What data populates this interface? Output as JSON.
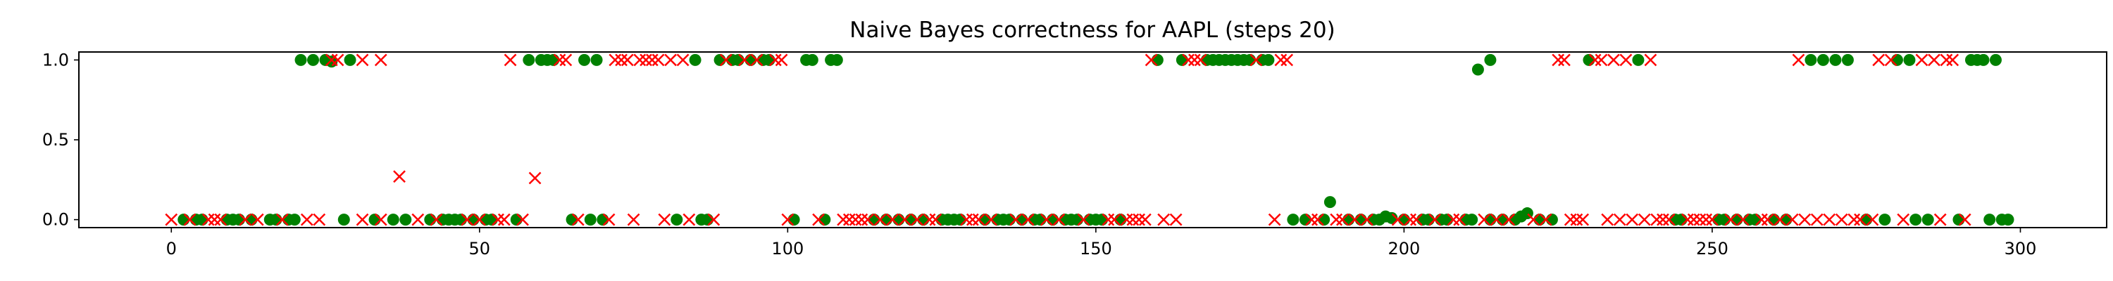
{
  "chart_data": {
    "type": "scatter",
    "title": "Naive Bayes correctness for AAPL (steps 20)",
    "xlabel": "",
    "ylabel": "",
    "xlim": [
      -15,
      314
    ],
    "ylim": [
      -0.05,
      1.05
    ],
    "xticks": [
      0,
      50,
      100,
      150,
      200,
      250,
      300
    ],
    "yticks": [
      0.0,
      0.5,
      1.0
    ],
    "grid": false,
    "colors": {
      "correct": "#008000",
      "incorrect": "#ff0000"
    },
    "series": [
      {
        "marker": "circle",
        "color": "#008000",
        "points": [
          [
            2,
            0
          ],
          [
            4,
            0
          ],
          [
            5,
            0
          ],
          [
            9,
            0
          ],
          [
            10,
            0
          ],
          [
            11,
            0
          ],
          [
            13,
            0
          ],
          [
            16,
            0
          ],
          [
            17,
            0
          ],
          [
            19,
            0
          ],
          [
            20,
            0
          ],
          [
            21,
            1
          ],
          [
            23,
            1
          ],
          [
            25,
            1
          ],
          [
            26,
            0.99
          ],
          [
            28,
            0
          ],
          [
            29,
            1
          ],
          [
            33,
            0
          ],
          [
            36,
            0
          ],
          [
            38,
            0
          ],
          [
            42,
            0
          ],
          [
            44,
            0
          ],
          [
            45,
            0
          ],
          [
            46,
            0
          ],
          [
            47,
            0
          ],
          [
            49,
            0
          ],
          [
            51,
            0
          ],
          [
            52,
            0
          ],
          [
            56,
            0
          ],
          [
            58,
            1
          ],
          [
            60,
            1
          ],
          [
            61,
            1
          ],
          [
            62,
            1
          ],
          [
            65,
            0
          ],
          [
            67,
            1
          ],
          [
            68,
            0
          ],
          [
            69,
            1
          ],
          [
            70,
            0
          ],
          [
            82,
            0
          ],
          [
            85,
            1
          ],
          [
            86,
            0
          ],
          [
            87,
            0
          ],
          [
            89,
            1
          ],
          [
            91,
            1
          ],
          [
            92,
            1
          ],
          [
            94,
            1
          ],
          [
            96,
            1
          ],
          [
            97,
            1
          ],
          [
            101,
            0
          ],
          [
            103,
            1
          ],
          [
            104,
            1
          ],
          [
            106,
            0
          ],
          [
            107,
            1
          ],
          [
            108,
            1
          ],
          [
            114,
            0
          ],
          [
            116,
            0
          ],
          [
            118,
            0
          ],
          [
            120,
            0
          ],
          [
            122,
            0
          ],
          [
            125,
            0
          ],
          [
            126,
            0
          ],
          [
            127,
            0
          ],
          [
            128,
            0
          ],
          [
            132,
            0
          ],
          [
            134,
            0
          ],
          [
            135,
            0
          ],
          [
            136,
            0
          ],
          [
            138,
            0
          ],
          [
            140,
            0
          ],
          [
            141,
            0
          ],
          [
            143,
            0
          ],
          [
            145,
            0
          ],
          [
            146,
            0
          ],
          [
            147,
            0
          ],
          [
            149,
            0
          ],
          [
            150,
            0
          ],
          [
            151,
            0
          ],
          [
            154,
            0
          ],
          [
            160,
            1
          ],
          [
            164,
            1
          ],
          [
            168,
            1
          ],
          [
            169,
            1
          ],
          [
            170,
            1
          ],
          [
            171,
            1
          ],
          [
            172,
            1
          ],
          [
            173,
            1
          ],
          [
            174,
            1
          ],
          [
            175,
            1
          ],
          [
            177,
            1
          ],
          [
            178,
            1
          ],
          [
            182,
            0
          ],
          [
            184,
            0
          ],
          [
            187,
            0
          ],
          [
            188,
            0.11
          ],
          [
            191,
            0
          ],
          [
            193,
            0
          ],
          [
            195,
            0
          ],
          [
            196,
            0
          ],
          [
            197,
            0.02
          ],
          [
            198,
            0.01
          ],
          [
            200,
            0
          ],
          [
            203,
            0
          ],
          [
            204,
            0
          ],
          [
            206,
            0
          ],
          [
            207,
            0
          ],
          [
            210,
            0
          ],
          [
            211,
            0
          ],
          [
            212,
            0.94
          ],
          [
            214,
            1
          ],
          [
            214,
            0
          ],
          [
            216,
            0
          ],
          [
            218,
            0
          ],
          [
            219,
            0.02
          ],
          [
            220,
            0.04
          ],
          [
            222,
            0
          ],
          [
            224,
            0
          ],
          [
            230,
            1
          ],
          [
            238,
            1
          ],
          [
            244,
            0
          ],
          [
            245,
            0
          ],
          [
            251,
            0
          ],
          [
            252,
            0
          ],
          [
            254,
            0
          ],
          [
            256,
            0
          ],
          [
            257,
            0
          ],
          [
            260,
            0
          ],
          [
            262,
            0
          ],
          [
            266,
            1
          ],
          [
            268,
            1
          ],
          [
            270,
            1
          ],
          [
            272,
            1
          ],
          [
            275,
            0
          ],
          [
            278,
            0
          ],
          [
            280,
            1
          ],
          [
            282,
            1
          ],
          [
            283,
            0
          ],
          [
            285,
            0
          ],
          [
            290,
            0
          ],
          [
            292,
            1
          ],
          [
            293,
            1
          ],
          [
            294,
            1
          ],
          [
            295,
            0
          ],
          [
            296,
            1
          ],
          [
            297,
            0
          ],
          [
            298,
            0
          ]
        ]
      },
      {
        "marker": "x",
        "color": "#ff0000",
        "points": [
          [
            0,
            0
          ],
          [
            3,
            0
          ],
          [
            6,
            0
          ],
          [
            7,
            0
          ],
          [
            8,
            0
          ],
          [
            12,
            0
          ],
          [
            14,
            0
          ],
          [
            18,
            0
          ],
          [
            22,
            0
          ],
          [
            24,
            0
          ],
          [
            26,
            1
          ],
          [
            27,
            1
          ],
          [
            31,
            0
          ],
          [
            31,
            1
          ],
          [
            34,
            0
          ],
          [
            34,
            1
          ],
          [
            37,
            0.27
          ],
          [
            40,
            0
          ],
          [
            43,
            0
          ],
          [
            48,
            0
          ],
          [
            50,
            0
          ],
          [
            53,
            0
          ],
          [
            54,
            0
          ],
          [
            55,
            1
          ],
          [
            57,
            0
          ],
          [
            59,
            0.26
          ],
          [
            63,
            1
          ],
          [
            64,
            1
          ],
          [
            66,
            0
          ],
          [
            71,
            0
          ],
          [
            72,
            1
          ],
          [
            73,
            1
          ],
          [
            74,
            1
          ],
          [
            75,
            0
          ],
          [
            76,
            1
          ],
          [
            77,
            1
          ],
          [
            78,
            1
          ],
          [
            79,
            1
          ],
          [
            80,
            0
          ],
          [
            81,
            1
          ],
          [
            83,
            1
          ],
          [
            84,
            0
          ],
          [
            88,
            0
          ],
          [
            90,
            1
          ],
          [
            93,
            1
          ],
          [
            95,
            1
          ],
          [
            98,
            1
          ],
          [
            99,
            1
          ],
          [
            100,
            0
          ],
          [
            105,
            0
          ],
          [
            109,
            0
          ],
          [
            110,
            0
          ],
          [
            111,
            0
          ],
          [
            112,
            0
          ],
          [
            113,
            0
          ],
          [
            115,
            0
          ],
          [
            117,
            0
          ],
          [
            119,
            0
          ],
          [
            121,
            0
          ],
          [
            123,
            0
          ],
          [
            124,
            0
          ],
          [
            129,
            0
          ],
          [
            130,
            0
          ],
          [
            131,
            0
          ],
          [
            133,
            0
          ],
          [
            137,
            0
          ],
          [
            139,
            0
          ],
          [
            142,
            0
          ],
          [
            144,
            0
          ],
          [
            148,
            0
          ],
          [
            152,
            0
          ],
          [
            153,
            0
          ],
          [
            155,
            0
          ],
          [
            156,
            0
          ],
          [
            157,
            0
          ],
          [
            158,
            0
          ],
          [
            159,
            1
          ],
          [
            161,
            0
          ],
          [
            163,
            0
          ],
          [
            165,
            1
          ],
          [
            166,
            1
          ],
          [
            167,
            1
          ],
          [
            176,
            1
          ],
          [
            179,
            0
          ],
          [
            180,
            1
          ],
          [
            181,
            1
          ],
          [
            185,
            0
          ],
          [
            186,
            0
          ],
          [
            189,
            0
          ],
          [
            190,
            0
          ],
          [
            192,
            0
          ],
          [
            194,
            0
          ],
          [
            199,
            0
          ],
          [
            201,
            0
          ],
          [
            202,
            0
          ],
          [
            205,
            0
          ],
          [
            208,
            0
          ],
          [
            209,
            0
          ],
          [
            213,
            0
          ],
          [
            215,
            0
          ],
          [
            217,
            0
          ],
          [
            221,
            0
          ],
          [
            223,
            0
          ],
          [
            225,
            1
          ],
          [
            226,
            1
          ],
          [
            227,
            0
          ],
          [
            228,
            0
          ],
          [
            229,
            0
          ],
          [
            231,
            1
          ],
          [
            232,
            1
          ],
          [
            233,
            0
          ],
          [
            234,
            1
          ],
          [
            235,
            0
          ],
          [
            236,
            1
          ],
          [
            237,
            0
          ],
          [
            239,
            0
          ],
          [
            240,
            1
          ],
          [
            241,
            0
          ],
          [
            242,
            0
          ],
          [
            243,
            0
          ],
          [
            246,
            0
          ],
          [
            247,
            0
          ],
          [
            248,
            0
          ],
          [
            249,
            0
          ],
          [
            250,
            0
          ],
          [
            253,
            0
          ],
          [
            255,
            0
          ],
          [
            258,
            0
          ],
          [
            259,
            0
          ],
          [
            261,
            0
          ],
          [
            263,
            0
          ],
          [
            264,
            1
          ],
          [
            265,
            0
          ],
          [
            267,
            0
          ],
          [
            269,
            0
          ],
          [
            271,
            0
          ],
          [
            273,
            0
          ],
          [
            274,
            0
          ],
          [
            276,
            0
          ],
          [
            277,
            1
          ],
          [
            279,
            1
          ],
          [
            281,
            0
          ],
          [
            284,
            1
          ],
          [
            286,
            1
          ],
          [
            287,
            0
          ],
          [
            288,
            1
          ],
          [
            289,
            1
          ],
          [
            291,
            0
          ]
        ]
      }
    ]
  }
}
